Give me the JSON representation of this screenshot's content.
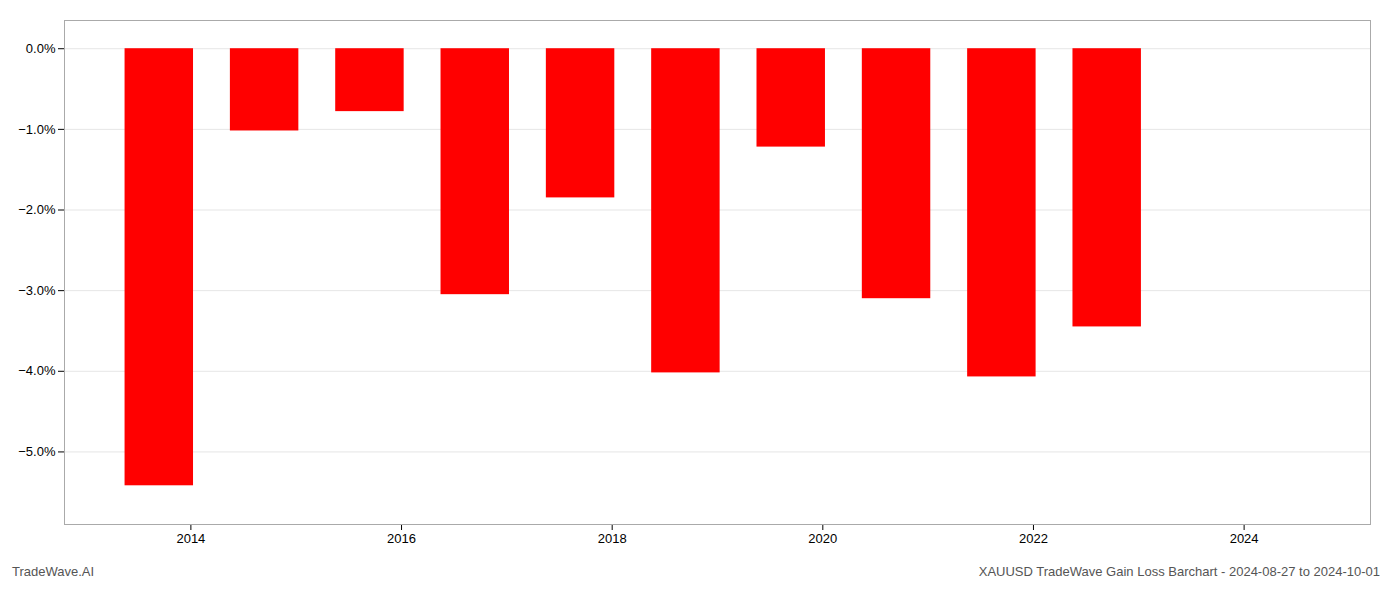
{
  "chart_data": {
    "type": "bar",
    "title": "XAUUSD TradeWave Gain Loss Barchart - 2024-08-27 to 2024-10-01",
    "caption": "TradeWave.AI",
    "x": [
      2013.7,
      2014.7,
      2015.7,
      2016.7,
      2017.7,
      2018.7,
      2019.7,
      2020.7,
      2021.7,
      2022.7
    ],
    "values": [
      -5.42,
      -1.02,
      -0.78,
      -3.05,
      -1.85,
      -4.02,
      -1.22,
      -3.1,
      -4.07,
      -3.45
    ],
    "color": "#ff0000",
    "xlim": [
      2012.8,
      2025.2
    ],
    "xticks": [
      2014,
      2016,
      2018,
      2020,
      2022,
      2024
    ],
    "ylim": [
      -5.9,
      0.35
    ],
    "yticks": [
      {
        "value": 0.0,
        "label": "0.0%"
      },
      {
        "value": -1.0,
        "label": "−1.0%"
      },
      {
        "value": -2.0,
        "label": "−2.0%"
      },
      {
        "value": -3.0,
        "label": "−3.0%"
      },
      {
        "value": -4.0,
        "label": "−4.0%"
      },
      {
        "value": -5.0,
        "label": "−5.0%"
      }
    ],
    "grid": true
  }
}
